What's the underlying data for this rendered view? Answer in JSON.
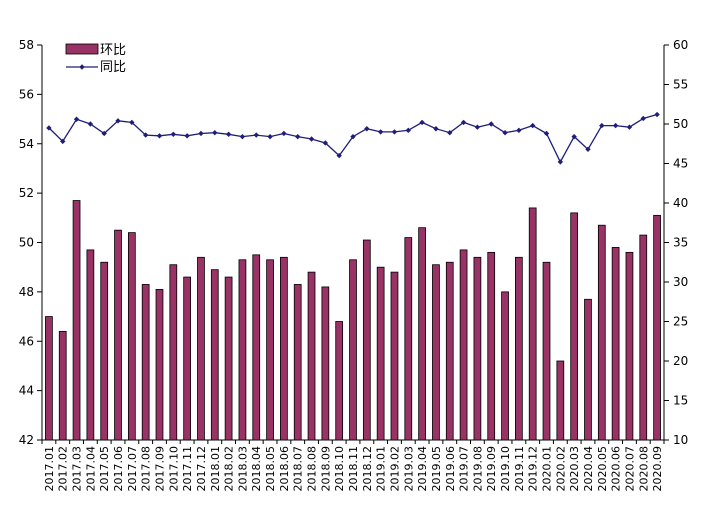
{
  "chart_data": {
    "type": "bar+line",
    "title": "",
    "xlabel": "",
    "ylabel_left": "",
    "ylabel_right": "",
    "categories": [
      "2017.01",
      "2017.02",
      "2017.03",
      "2017.04",
      "2017.05",
      "2017.06",
      "2017.07",
      "2017.08",
      "2017.09",
      "2017.10",
      "2017.11",
      "2017.12",
      "2018.01",
      "2018.02",
      "2018.03",
      "2018.04",
      "2018.05",
      "2018.06",
      "2018.07",
      "2018.08",
      "2018.09",
      "2018.10",
      "2018.11",
      "2018.12",
      "2019.01",
      "2019.02",
      "2019.03",
      "2019.04",
      "2019.05",
      "2019.06",
      "2019.07",
      "2019.08",
      "2019.09",
      "2019.10",
      "2019.11",
      "2019.12",
      "2020.01",
      "2020.02",
      "2020.03",
      "2020.04",
      "2020.05",
      "2020.06",
      "2020.07",
      "2020.08",
      "2020.09"
    ],
    "left_axis": {
      "ylim": [
        42,
        58
      ],
      "ticks": [
        "42",
        "44",
        "46",
        "48",
        "50",
        "52",
        "54",
        "56",
        "58"
      ]
    },
    "right_axis": {
      "ylim": [
        10,
        60
      ],
      "ticks": [
        "10",
        "15",
        "20",
        "25",
        "30",
        "35",
        "40",
        "45",
        "50",
        "55",
        "60"
      ]
    },
    "series": [
      {
        "name": "环比",
        "kind": "bar",
        "axis": "left",
        "color": "#993366",
        "values": [
          47.0,
          46.4,
          51.7,
          49.7,
          49.2,
          50.5,
          50.4,
          48.3,
          48.1,
          49.1,
          48.6,
          49.4,
          48.9,
          48.6,
          49.3,
          49.5,
          49.3,
          49.4,
          48.3,
          48.8,
          48.2,
          46.8,
          49.3,
          50.1,
          49.0,
          48.8,
          50.2,
          50.6,
          49.1,
          49.2,
          49.7,
          49.4,
          49.6,
          48.0,
          49.4,
          51.4,
          49.2,
          45.2,
          51.2,
          47.7,
          50.7,
          49.8,
          49.6,
          50.3,
          51.1
        ]
      },
      {
        "name": "同比",
        "kind": "line",
        "axis": "right",
        "color": "#1f1f7a",
        "values": [
          49.5,
          47.8,
          50.6,
          50.0,
          48.8,
          50.4,
          50.2,
          48.6,
          48.5,
          48.7,
          48.5,
          48.8,
          48.9,
          48.7,
          48.4,
          48.6,
          48.4,
          48.8,
          48.4,
          48.1,
          47.6,
          46.0,
          48.4,
          49.4,
          49.0,
          49.0,
          49.2,
          50.2,
          49.4,
          48.9,
          50.2,
          49.6,
          50.0,
          48.9,
          49.2,
          49.8,
          48.8,
          45.2,
          48.4,
          46.8,
          49.8,
          49.8,
          49.6,
          50.7,
          51.2
        ]
      }
    ],
    "legend": {
      "position": "top-left"
    },
    "grid": false
  }
}
